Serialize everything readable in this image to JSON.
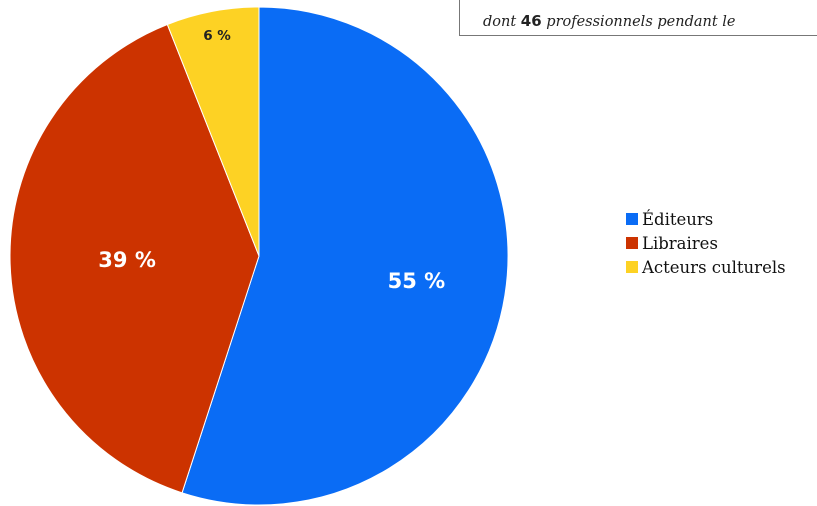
{
  "caption": {
    "text_before": "dont",
    "number": "46",
    "text_after": "professionnels pendant le"
  },
  "chart_data": {
    "type": "pie",
    "categories": [
      "Éditeurs",
      "Libraires",
      "Acteurs culturels"
    ],
    "values": [
      55,
      39,
      6
    ],
    "labels": [
      "55 %",
      "39 %",
      "6 %"
    ],
    "colors": [
      "#0a6cf5",
      "#cc3300",
      "#fdd224"
    ],
    "start_at": "12 o'clock",
    "direction": "clockwise",
    "legend_position": "right"
  },
  "legend": {
    "items": [
      {
        "label": "Éditeurs",
        "color": "#0a6cf5"
      },
      {
        "label": "Libraires",
        "color": "#cc3300"
      },
      {
        "label": "Acteurs culturels",
        "color": "#fdd224"
      }
    ]
  }
}
